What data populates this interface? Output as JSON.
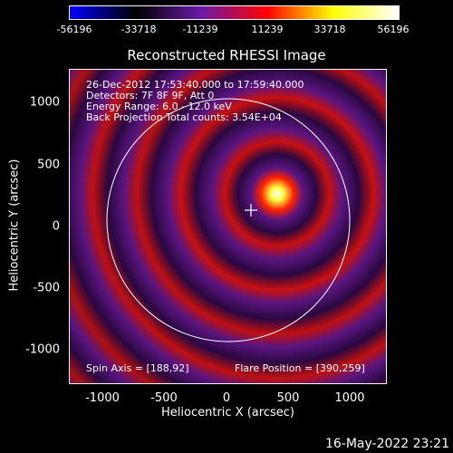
{
  "colorbar": {
    "ticks": [
      "-56196",
      "-33718",
      "-11239",
      "11239",
      "33718",
      "56196"
    ],
    "colors": [
      "#0000ff",
      "#000000",
      "#6a1aa8",
      "#ff0000",
      "#ffff00",
      "#ffffff"
    ]
  },
  "plot": {
    "title": "Reconstructed RHESSI Image",
    "info_lines": [
      "26-Dec-2012 17:53:40.000 to 17:59:40.000",
      "Detectors: 7F 8F 9F, Att 0",
      "Energy Range: 6.0 - 12.0 keV",
      "Back Projection    Total counts: 3.54E+04"
    ],
    "spin_axis": "Spin Axis = [188,92]",
    "flare_position": "Flare Position = [390,259]",
    "x_label": "Heliocentric X (arcsec)",
    "y_label": "Heliocentric Y (arcsec)",
    "x_ticks": [
      "-1000",
      "-500",
      "0",
      "500",
      "1000"
    ],
    "y_ticks": [
      "1000",
      "500",
      "0",
      "-500",
      "-1000"
    ]
  },
  "timestamp": "16-May-2022 23:21"
}
